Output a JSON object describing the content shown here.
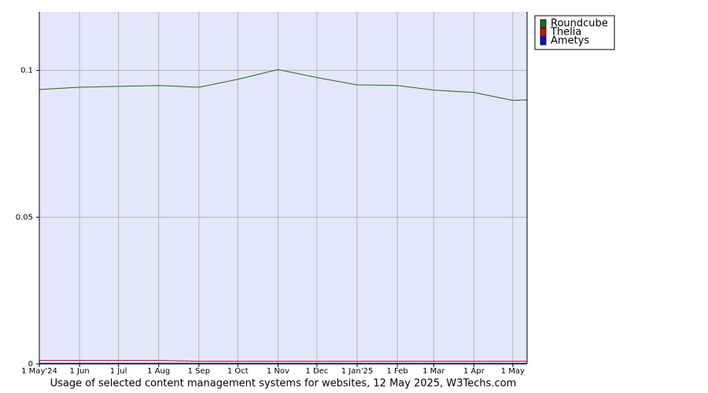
{
  "chart_data": {
    "type": "line",
    "caption": "Usage of selected content management systems for websites, 12 May 2025, W3Techs.com",
    "x": [
      "2024-05-01",
      "2024-06-01",
      "2024-07-01",
      "2024-08-01",
      "2024-09-01",
      "2024-10-01",
      "2024-11-01",
      "2024-12-01",
      "2025-01-01",
      "2025-02-01",
      "2025-03-01",
      "2025-04-01",
      "2025-05-01",
      "2025-05-12"
    ],
    "xlim": [
      "2024-05-01",
      "2025-05-12"
    ],
    "xticks": [
      {
        "value": "2024-05-01",
        "label": "1 May'24"
      },
      {
        "value": "2024-06-01",
        "label": "1 Jun"
      },
      {
        "value": "2024-07-01",
        "label": "1 Jul"
      },
      {
        "value": "2024-08-01",
        "label": "1 Aug"
      },
      {
        "value": "2024-09-01",
        "label": "1 Sep"
      },
      {
        "value": "2024-10-01",
        "label": "1 Oct"
      },
      {
        "value": "2024-11-01",
        "label": "1 Nov"
      },
      {
        "value": "2024-12-01",
        "label": "1 Dec"
      },
      {
        "value": "2025-01-01",
        "label": "1 Jan'25"
      },
      {
        "value": "2025-02-01",
        "label": "1 Feb"
      },
      {
        "value": "2025-03-01",
        "label": "1 Mar"
      },
      {
        "value": "2025-04-01",
        "label": "1 Apr"
      },
      {
        "value": "2025-05-01",
        "label": "1 May"
      }
    ],
    "ylim": [
      0,
      0.12
    ],
    "yticks": [
      0,
      0.05,
      0.1
    ],
    "grid": true,
    "legend": "outside-right-top",
    "series": [
      {
        "name": "Roundcube",
        "color": "#1e6e1e",
        "values": [
          0.0935,
          0.0943,
          0.0946,
          0.0949,
          0.0943,
          0.097,
          0.1003,
          0.0976,
          0.0951,
          0.0949,
          0.0933,
          0.0925,
          0.0898,
          0.09
        ]
      },
      {
        "name": "Thelia",
        "color": "#d01010",
        "values": [
          0.0012,
          0.0012,
          0.0012,
          0.0012,
          0.0009,
          0.0009,
          0.0009,
          0.0009,
          0.0009,
          0.0009,
          0.0009,
          0.0009,
          0.0009,
          0.0009
        ]
      },
      {
        "name": "Ametys",
        "color": "#1010d0",
        "values": [
          0.0002,
          0.0002,
          0.0002,
          0.0002,
          0.0002,
          0.0002,
          0.0002,
          0.0002,
          0.0002,
          0.0002,
          0.0002,
          0.0002,
          0.0002,
          0.0002
        ]
      }
    ]
  }
}
